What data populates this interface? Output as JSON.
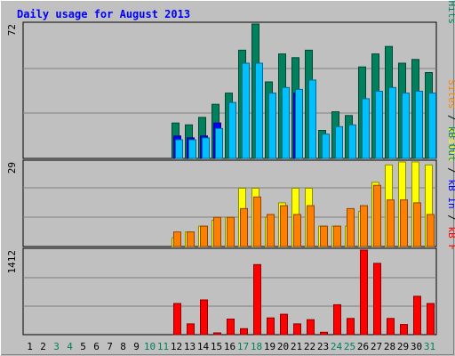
{
  "colors": {
    "background": "#c0c0c0",
    "frame": "#000000",
    "grid": "#808080",
    "title": "#0000ff",
    "weekday_label": "#000000",
    "weekend_label": "#00805c",
    "hits": "#00805c",
    "files": "#0000ff",
    "pages": "#00c0ff",
    "visits": "#ffff00",
    "sites": "#ff8000",
    "kb_f": "#ff0000",
    "kb_in": "#0000ff",
    "kb_out": "#00805c"
  },
  "chart_data": {
    "type": "bar",
    "title": "Daily usage for August 2013",
    "categories": [
      "1",
      "2",
      "3",
      "4",
      "5",
      "6",
      "7",
      "8",
      "9",
      "10",
      "11",
      "12",
      "13",
      "14",
      "15",
      "16",
      "17",
      "18",
      "19",
      "20",
      "21",
      "22",
      "23",
      "24",
      "25",
      "26",
      "27",
      "28",
      "29",
      "30",
      "31"
    ],
    "weekend_days": [
      "3",
      "4",
      "10",
      "11",
      "17",
      "18",
      "24",
      "25",
      "31"
    ],
    "panels": [
      {
        "name": "hits_files_pages",
        "ymax_label": "72",
        "ymax": 72,
        "side_legend": [
          {
            "text": "Hits",
            "color_key": "hits"
          },
          {
            "text": " / ",
            "color_key": "weekday_label"
          },
          {
            "text": "Files",
            "color_key": "files"
          },
          {
            "text": " / ",
            "color_key": "weekday_label"
          },
          {
            "text": "Pages",
            "color_key": "pages"
          }
        ],
        "series": [
          {
            "name": "Hits",
            "color_key": "hits",
            "values": [
              0,
              0,
              0,
              0,
              0,
              0,
              0,
              0,
              0,
              0,
              0,
              19,
              18,
              22,
              29,
              35,
              58,
              72,
              41,
              56,
              54,
              58,
              15,
              25,
              23,
              49,
              56,
              60,
              51,
              53,
              46
            ]
          },
          {
            "name": "Files",
            "color_key": "files",
            "values": [
              0,
              0,
              0,
              0,
              0,
              0,
              0,
              0,
              0,
              0,
              0,
              12,
              11,
              12,
              19,
              0,
              0,
              0,
              0,
              0,
              35,
              0,
              0,
              0,
              0,
              0,
              0,
              0,
              0,
              0,
              0
            ]
          },
          {
            "name": "Pages",
            "color_key": "pages",
            "values": [
              0,
              0,
              0,
              0,
              0,
              0,
              0,
              0,
              0,
              0,
              0,
              10,
              10,
              11,
              16,
              30,
              51,
              51,
              35,
              38,
              37,
              42,
              13,
              17,
              18,
              32,
              36,
              38,
              35,
              36,
              35
            ]
          }
        ]
      },
      {
        "name": "visits_sites",
        "ymax_label": "29",
        "ymax": 29,
        "side_legend": [
          {
            "text": "Visits",
            "color_key": "visits"
          },
          {
            "text": " / ",
            "color_key": "weekday_label"
          },
          {
            "text": "Sites",
            "color_key": "sites"
          }
        ],
        "series": [
          {
            "name": "Visits",
            "color_key": "visits",
            "values": [
              0,
              0,
              0,
              0,
              0,
              0,
              0,
              0,
              0,
              0,
              0,
              3,
              5,
              7,
              9,
              10,
              20,
              20,
              10,
              15,
              20,
              20,
              7,
              7,
              7,
              12,
              22,
              28,
              29,
              29,
              28
            ]
          },
          {
            "name": "Sites",
            "color_key": "sites",
            "values": [
              0,
              0,
              0,
              0,
              0,
              0,
              0,
              0,
              0,
              0,
              0,
              5,
              5,
              7,
              10,
              10,
              13,
              17,
              11,
              14,
              11,
              14,
              7,
              7,
              13,
              14,
              21,
              16,
              16,
              15,
              11
            ]
          }
        ]
      },
      {
        "name": "kbytes",
        "ymax_label": "1412",
        "ymax": 1412,
        "side_legend": [
          {
            "text": "kB F",
            "color_key": "kb_f"
          },
          {
            "text": " / ",
            "color_key": "weekday_label"
          },
          {
            "text": "kB In",
            "color_key": "kb_in"
          },
          {
            "text": " / ",
            "color_key": "weekday_label"
          },
          {
            "text": "kB Out",
            "color_key": "kb_out"
          }
        ],
        "series": [
          {
            "name": "kB F",
            "color_key": "kb_f",
            "values": [
              0,
              0,
              0,
              0,
              0,
              0,
              0,
              0,
              0,
              0,
              0,
              520,
              180,
              580,
              30,
              260,
              100,
              1170,
              280,
              340,
              180,
              250,
              40,
              500,
              270,
              1412,
              1190,
              270,
              170,
              640,
              520
            ]
          }
        ]
      }
    ]
  }
}
